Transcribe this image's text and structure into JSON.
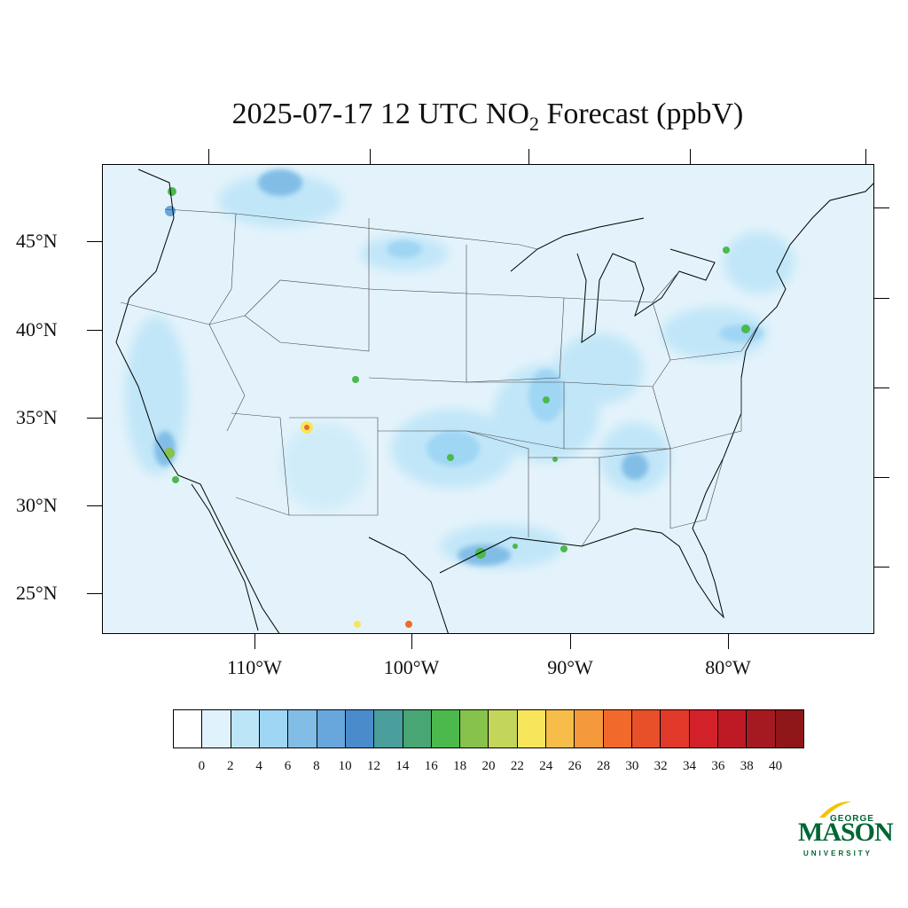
{
  "title": {
    "main": "2025-07-17 12 UTC NO",
    "subscript": "2",
    "rest": " Forecast (ppbV)"
  },
  "axes": {
    "lat_labels": [
      "45°N",
      "40°N",
      "35°N",
      "30°N",
      "25°N"
    ],
    "lon_labels": [
      "110°W",
      "100°W",
      "90°W",
      "80°W"
    ]
  },
  "colorbar": {
    "labels": [
      "0",
      "2",
      "4",
      "6",
      "8",
      "10",
      "12",
      "14",
      "16",
      "18",
      "20",
      "22",
      "24",
      "26",
      "28",
      "30",
      "32",
      "34",
      "36",
      "38",
      "40"
    ],
    "colors": [
      "#ffffff",
      "#e0f3fc",
      "#bde5f8",
      "#9fd6f4",
      "#82bde6",
      "#68a7dc",
      "#4a8ccb",
      "#4a9e9b",
      "#48a674",
      "#4bb94b",
      "#86c24c",
      "#c3d55a",
      "#f7e65c",
      "#f7bd4a",
      "#f59a3c",
      "#f26a2b",
      "#e8502a",
      "#e0392a",
      "#d32129",
      "#bd1a26",
      "#a51a20",
      "#8f1619"
    ]
  },
  "logo": {
    "top": "GEORGE",
    "main": "MASON",
    "bottom": "UNIVERSITY",
    "color": "#006633",
    "accent": "#f2c300"
  },
  "map": {
    "background_color": "#e4f3fb",
    "hotspot_colors": {
      "low": "#9fd6f4",
      "mid": "#68a7dc",
      "high": "#4bb94b",
      "peak": "#f26a2b"
    }
  }
}
